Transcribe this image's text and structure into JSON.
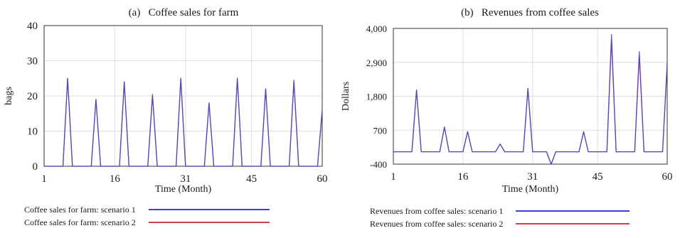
{
  "chart_data": [
    {
      "type": "line",
      "title": "(a)   Coffee sales for farm",
      "xlabel": "Time (Month)",
      "ylabel": "bags",
      "xlim": [
        1,
        60
      ],
      "ylim": [
        0,
        40
      ],
      "xticks": [
        1,
        16,
        31,
        45,
        60
      ],
      "yticks": [
        0,
        10,
        20,
        30,
        40
      ],
      "ytick_labels": [
        "0",
        "10",
        "20",
        "30",
        "40"
      ],
      "grid": true,
      "legend_placement": "bottom",
      "series": [
        {
          "name": "Coffee sales for farm: scenario 1",
          "color": "#4040d0",
          "x": [
            1,
            5,
            6,
            7,
            11,
            12,
            13,
            17,
            18,
            19,
            23,
            24,
            25,
            29,
            30,
            31,
            35,
            36,
            37,
            41,
            42,
            43,
            47,
            48,
            49,
            53,
            54,
            55,
            59,
            60
          ],
          "y": [
            0,
            0,
            25,
            0,
            0,
            19,
            0,
            0,
            24,
            0,
            0,
            20,
            0,
            0,
            25,
            0,
            0,
            18,
            0,
            0,
            25,
            0,
            0,
            22,
            0,
            0,
            24,
            0,
            0,
            16
          ]
        },
        {
          "name": "Coffee sales for farm: scenario 2",
          "color": "#d04050",
          "x": [
            1,
            5,
            6,
            7,
            11,
            12,
            13,
            17,
            18,
            19,
            23,
            24,
            25,
            29,
            30,
            31,
            35,
            36,
            37,
            41,
            42,
            43,
            47,
            48,
            49,
            53,
            54,
            55,
            59,
            60
          ],
          "y": [
            0,
            0,
            25,
            0,
            0,
            19,
            0,
            0,
            24,
            0,
            0,
            20.5,
            0,
            0,
            25,
            0,
            0,
            18,
            0,
            0,
            25,
            0,
            0,
            22,
            0,
            0,
            24.5,
            0,
            0,
            16
          ]
        }
      ]
    },
    {
      "type": "line",
      "title": "(b)   Revenues from coffee sales",
      "xlabel": "Time (Month)",
      "ylabel": "Dollars",
      "xlim": [
        1,
        60
      ],
      "ylim": [
        -400,
        4000
      ],
      "xticks": [
        1,
        16,
        31,
        45,
        60
      ],
      "yticks": [
        -400,
        700,
        1800,
        2900,
        4000
      ],
      "ytick_labels": [
        "-400",
        "700",
        "1,800",
        "2,900",
        "4,000"
      ],
      "grid": true,
      "legend_placement": "bottom",
      "series": [
        {
          "name": "Revenues from coffee sales: scenario 1",
          "color": "#4040d0",
          "x": [
            1,
            5,
            6,
            7,
            11,
            12,
            13,
            16,
            17,
            18,
            23,
            24,
            25,
            29,
            30,
            31,
            34,
            35,
            36,
            37,
            41,
            42,
            43,
            47,
            48,
            49,
            53,
            54,
            55,
            59,
            60
          ],
          "y": [
            0,
            0,
            2000,
            0,
            0,
            800,
            0,
            0,
            650,
            0,
            0,
            250,
            0,
            0,
            2050,
            0,
            0,
            -400,
            0,
            0,
            0,
            650,
            0,
            0,
            3800,
            0,
            0,
            3250,
            0,
            0,
            2900
          ]
        },
        {
          "name": "Revenues from coffee sales: scenario 2",
          "color": "#d04050",
          "x": [
            1,
            5,
            6,
            7,
            11,
            12,
            13,
            16,
            17,
            18,
            23,
            24,
            25,
            29,
            30,
            31,
            34,
            35,
            36,
            37,
            41,
            42,
            43,
            47,
            48,
            49,
            53,
            54,
            55,
            59,
            60
          ],
          "y": [
            0,
            0,
            2000,
            0,
            0,
            800,
            0,
            0,
            650,
            0,
            0,
            250,
            0,
            0,
            2050,
            0,
            0,
            -400,
            0,
            0,
            0,
            650,
            0,
            0,
            3600,
            0,
            0,
            3100,
            0,
            0,
            2800
          ]
        }
      ]
    }
  ]
}
